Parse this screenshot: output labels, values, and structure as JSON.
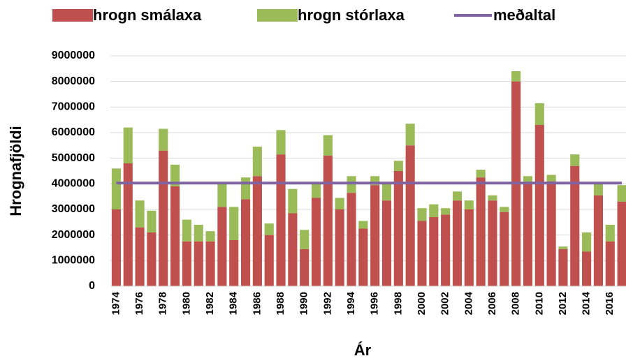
{
  "chart_data": {
    "type": "bar",
    "stacked": true,
    "x_label": "Ár",
    "y_label": "Hrognafjöldi",
    "categories": [
      "1974",
      null,
      "1976",
      null,
      "1978",
      null,
      "1980",
      null,
      "1982",
      null,
      "1984",
      null,
      "1986",
      null,
      "1988",
      null,
      "1990",
      null,
      "1992",
      null,
      "1994",
      null,
      "1996",
      null,
      "1998",
      null,
      "2000",
      null,
      "2002",
      null,
      "2004",
      null,
      "2006",
      null,
      "2008",
      null,
      "2010",
      null,
      "2012",
      null,
      "2014",
      null,
      "2016",
      null
    ],
    "series": [
      {
        "name": "hrogn smálaxa",
        "color": "#c0504d",
        "values": [
          3000000,
          4800000,
          2300000,
          2100000,
          5300000,
          3900000,
          1750000,
          1750000,
          1750000,
          3100000,
          1800000,
          3400000,
          4300000,
          2000000,
          5150000,
          2850000,
          1450000,
          3450000,
          5100000,
          3000000,
          3650000,
          2250000,
          3950000,
          3350000,
          4500000,
          5500000,
          2550000,
          2700000,
          2800000,
          3350000,
          3000000,
          4250000,
          3350000,
          2900000,
          8000000,
          4000000,
          6300000,
          4100000,
          1450000,
          4700000,
          1350000,
          3550000,
          1750000,
          3300000
        ]
      },
      {
        "name": "hrogn stórlaxa",
        "color": "#9bbb59",
        "values": [
          1600000,
          1400000,
          1050000,
          850000,
          850000,
          850000,
          850000,
          650000,
          400000,
          900000,
          1300000,
          850000,
          1150000,
          450000,
          950000,
          950000,
          750000,
          550000,
          800000,
          450000,
          650000,
          300000,
          350000,
          650000,
          400000,
          850000,
          500000,
          500000,
          250000,
          350000,
          350000,
          300000,
          200000,
          200000,
          400000,
          300000,
          850000,
          250000,
          100000,
          450000,
          750000,
          450000,
          650000,
          650000
        ]
      },
      {
        "name": "meðaltal",
        "color": "#8064a2",
        "type": "line",
        "values": [
          4030000,
          4030000,
          4030000,
          4030000,
          4030000,
          4030000,
          4030000,
          4030000,
          4030000,
          4030000,
          4030000,
          4030000,
          4030000,
          4030000,
          4030000,
          4030000,
          4030000,
          4030000,
          4030000,
          4030000,
          4030000,
          4030000,
          4030000,
          4030000,
          4030000,
          4030000,
          4030000,
          4030000,
          4030000,
          4030000,
          4030000,
          4030000,
          4030000,
          4030000,
          4030000,
          4030000,
          4030000,
          4030000,
          4030000,
          4030000,
          4030000,
          4030000,
          4030000,
          4030000
        ]
      }
    ],
    "ylim": [
      0,
      9000000
    ],
    "yticks": [
      0,
      1000000,
      2000000,
      3000000,
      4000000,
      5000000,
      6000000,
      7000000,
      8000000,
      9000000
    ],
    "grid": true,
    "legend": "top"
  }
}
